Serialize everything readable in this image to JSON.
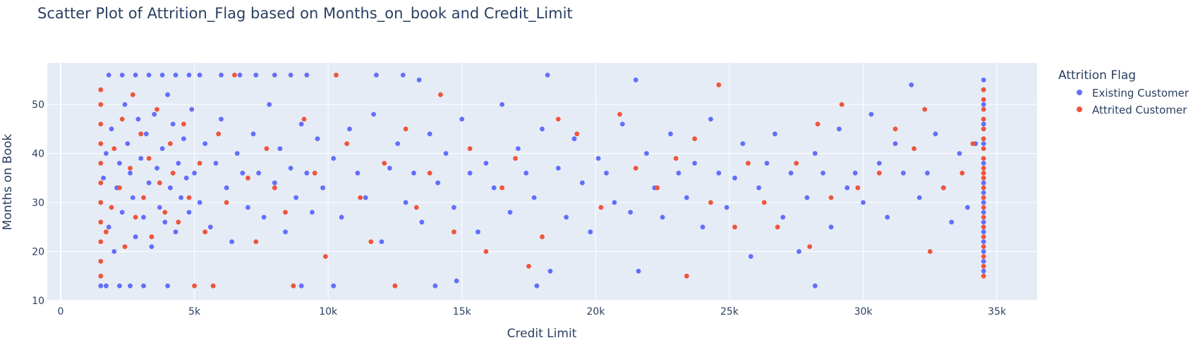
{
  "chart_data": {
    "type": "scatter",
    "title": "Scatter Plot of Attrition_Flag based on Months_on_book and Credit_Limit",
    "xlabel": "Credit Limit",
    "ylabel": "Months on Book",
    "xlim": [
      -500,
      36500
    ],
    "ylim": [
      10,
      58.5
    ],
    "xticks": [
      0,
      5000,
      10000,
      15000,
      20000,
      25000,
      30000,
      35000
    ],
    "xtick_labels": [
      "0",
      "5k",
      "10k",
      "15k",
      "20k",
      "25k",
      "30k",
      "35k"
    ],
    "yticks": [
      10,
      20,
      30,
      40,
      50
    ],
    "ytick_labels": [
      "10",
      "20",
      "30",
      "40",
      "50"
    ],
    "grid": true,
    "background": "#e5ecf6",
    "legend": {
      "title": "Attrition Flag",
      "placement": "right"
    },
    "series": [
      {
        "name": "Existing Customer",
        "color": "#636efa",
        "points": [
          [
            1500,
            13
          ],
          [
            1700,
            13
          ],
          [
            2200,
            13
          ],
          [
            2600,
            13
          ],
          [
            3100,
            13
          ],
          [
            4000,
            13
          ],
          [
            9000,
            13
          ],
          [
            10200,
            13
          ],
          [
            14000,
            13
          ],
          [
            14800,
            14
          ],
          [
            17800,
            13
          ],
          [
            28200,
            13
          ],
          [
            1800,
            56
          ],
          [
            2300,
            56
          ],
          [
            2800,
            56
          ],
          [
            3300,
            56
          ],
          [
            3800,
            56
          ],
          [
            4300,
            56
          ],
          [
            4800,
            56
          ],
          [
            5200,
            56
          ],
          [
            6000,
            56
          ],
          [
            6700,
            56
          ],
          [
            7300,
            56
          ],
          [
            8000,
            56
          ],
          [
            8600,
            56
          ],
          [
            9200,
            56
          ],
          [
            11800,
            56
          ],
          [
            12800,
            56
          ],
          [
            13400,
            55
          ],
          [
            18200,
            56
          ],
          [
            21500,
            55
          ],
          [
            34500,
            55
          ],
          [
            1500,
            30
          ],
          [
            1600,
            35
          ],
          [
            1700,
            40
          ],
          [
            1800,
            25
          ],
          [
            1900,
            45
          ],
          [
            2000,
            20
          ],
          [
            2100,
            33
          ],
          [
            2200,
            38
          ],
          [
            2300,
            28
          ],
          [
            2400,
            50
          ],
          [
            2500,
            42
          ],
          [
            2600,
            36
          ],
          [
            2700,
            31
          ],
          [
            2800,
            23
          ],
          [
            2900,
            47
          ],
          [
            3000,
            39
          ],
          [
            3100,
            27
          ],
          [
            3200,
            44
          ],
          [
            3300,
            34
          ],
          [
            3400,
            21
          ],
          [
            3500,
            48
          ],
          [
            3600,
            37
          ],
          [
            3700,
            29
          ],
          [
            3800,
            41
          ],
          [
            3900,
            26
          ],
          [
            4000,
            52
          ],
          [
            4100,
            33
          ],
          [
            4200,
            46
          ],
          [
            4300,
            24
          ],
          [
            4400,
            38
          ],
          [
            4500,
            31
          ],
          [
            4600,
            43
          ],
          [
            4700,
            35
          ],
          [
            4800,
            28
          ],
          [
            4900,
            49
          ],
          [
            5000,
            36
          ],
          [
            5200,
            30
          ],
          [
            5400,
            42
          ],
          [
            5600,
            25
          ],
          [
            5800,
            38
          ],
          [
            6000,
            47
          ],
          [
            6200,
            33
          ],
          [
            6400,
            22
          ],
          [
            6600,
            40
          ],
          [
            6800,
            36
          ],
          [
            7000,
            29
          ],
          [
            7200,
            44
          ],
          [
            7400,
            36
          ],
          [
            7600,
            27
          ],
          [
            7800,
            50
          ],
          [
            8000,
            34
          ],
          [
            8200,
            41
          ],
          [
            8400,
            24
          ],
          [
            8600,
            37
          ],
          [
            8800,
            31
          ],
          [
            9000,
            46
          ],
          [
            9200,
            36
          ],
          [
            9400,
            28
          ],
          [
            9600,
            43
          ],
          [
            9800,
            33
          ],
          [
            10200,
            39
          ],
          [
            10500,
            27
          ],
          [
            10800,
            45
          ],
          [
            11100,
            36
          ],
          [
            11400,
            31
          ],
          [
            11700,
            48
          ],
          [
            12000,
            22
          ],
          [
            12300,
            37
          ],
          [
            12600,
            42
          ],
          [
            12900,
            30
          ],
          [
            13200,
            36
          ],
          [
            13500,
            26
          ],
          [
            13800,
            44
          ],
          [
            14100,
            34
          ],
          [
            14400,
            40
          ],
          [
            14700,
            29
          ],
          [
            15000,
            47
          ],
          [
            15300,
            36
          ],
          [
            15600,
            24
          ],
          [
            15900,
            38
          ],
          [
            16200,
            33
          ],
          [
            16500,
            50
          ],
          [
            16800,
            28
          ],
          [
            17100,
            41
          ],
          [
            17400,
            36
          ],
          [
            17700,
            31
          ],
          [
            18000,
            45
          ],
          [
            18300,
            16
          ],
          [
            18600,
            37
          ],
          [
            18900,
            27
          ],
          [
            19200,
            43
          ],
          [
            19500,
            34
          ],
          [
            19800,
            24
          ],
          [
            20100,
            39
          ],
          [
            20400,
            36
          ],
          [
            20700,
            30
          ],
          [
            21000,
            46
          ],
          [
            21300,
            28
          ],
          [
            21600,
            16
          ],
          [
            21900,
            40
          ],
          [
            22200,
            33
          ],
          [
            22500,
            27
          ],
          [
            22800,
            44
          ],
          [
            23100,
            36
          ],
          [
            23400,
            31
          ],
          [
            23700,
            38
          ],
          [
            24000,
            25
          ],
          [
            24300,
            47
          ],
          [
            24600,
            36
          ],
          [
            24900,
            29
          ],
          [
            25200,
            35
          ],
          [
            25500,
            42
          ],
          [
            25800,
            19
          ],
          [
            26100,
            33
          ],
          [
            26400,
            38
          ],
          [
            26700,
            44
          ],
          [
            27000,
            27
          ],
          [
            27300,
            36
          ],
          [
            27600,
            20
          ],
          [
            27900,
            31
          ],
          [
            28200,
            40
          ],
          [
            28500,
            36
          ],
          [
            28800,
            25
          ],
          [
            29100,
            45
          ],
          [
            29400,
            33
          ],
          [
            29700,
            36
          ],
          [
            30000,
            30
          ],
          [
            30300,
            48
          ],
          [
            30600,
            38
          ],
          [
            30900,
            27
          ],
          [
            31200,
            42
          ],
          [
            31500,
            36
          ],
          [
            31800,
            54
          ],
          [
            32100,
            31
          ],
          [
            32400,
            36
          ],
          [
            32700,
            44
          ],
          [
            33000,
            33
          ],
          [
            33300,
            26
          ],
          [
            33600,
            40
          ],
          [
            33900,
            29
          ],
          [
            34200,
            42
          ],
          [
            34500,
            16
          ],
          [
            34500,
            18
          ],
          [
            34500,
            20
          ],
          [
            34500,
            22
          ],
          [
            34500,
            24
          ],
          [
            34500,
            26
          ],
          [
            34500,
            28
          ],
          [
            34500,
            30
          ],
          [
            34500,
            32
          ],
          [
            34500,
            34
          ],
          [
            34500,
            38
          ],
          [
            34500,
            42
          ],
          [
            34500,
            46
          ],
          [
            34500,
            50
          ],
          [
            34500,
            53
          ]
        ]
      },
      {
        "name": "Attrited Customer",
        "color": "#ef553b",
        "points": [
          [
            1500,
            15
          ],
          [
            1500,
            18
          ],
          [
            1500,
            22
          ],
          [
            1500,
            26
          ],
          [
            1500,
            30
          ],
          [
            1500,
            34
          ],
          [
            1500,
            38
          ],
          [
            1500,
            42
          ],
          [
            1500,
            46
          ],
          [
            1500,
            50
          ],
          [
            1500,
            53
          ],
          [
            1700,
            24
          ],
          [
            1900,
            29
          ],
          [
            2000,
            41
          ],
          [
            2200,
            33
          ],
          [
            2300,
            47
          ],
          [
            2400,
            21
          ],
          [
            2600,
            37
          ],
          [
            2700,
            52
          ],
          [
            2800,
            27
          ],
          [
            3000,
            44
          ],
          [
            3100,
            31
          ],
          [
            3300,
            39
          ],
          [
            3400,
            23
          ],
          [
            3600,
            49
          ],
          [
            3700,
            34
          ],
          [
            3900,
            28
          ],
          [
            4100,
            42
          ],
          [
            4200,
            36
          ],
          [
            4400,
            26
          ],
          [
            4600,
            46
          ],
          [
            4800,
            31
          ],
          [
            5000,
            13
          ],
          [
            5200,
            38
          ],
          [
            5400,
            24
          ],
          [
            5700,
            13
          ],
          [
            5900,
            44
          ],
          [
            6200,
            30
          ],
          [
            6500,
            56
          ],
          [
            7000,
            35
          ],
          [
            7300,
            22
          ],
          [
            7700,
            41
          ],
          [
            8000,
            33
          ],
          [
            8400,
            28
          ],
          [
            8700,
            13
          ],
          [
            9100,
            47
          ],
          [
            9500,
            36
          ],
          [
            9900,
            19
          ],
          [
            10300,
            56
          ],
          [
            10700,
            42
          ],
          [
            11200,
            31
          ],
          [
            11600,
            22
          ],
          [
            12100,
            38
          ],
          [
            12500,
            13
          ],
          [
            12900,
            45
          ],
          [
            13300,
            29
          ],
          [
            13800,
            36
          ],
          [
            14200,
            52
          ],
          [
            14700,
            24
          ],
          [
            15300,
            41
          ],
          [
            15900,
            20
          ],
          [
            16500,
            33
          ],
          [
            17000,
            39
          ],
          [
            17500,
            17
          ],
          [
            18000,
            23
          ],
          [
            18600,
            47
          ],
          [
            19300,
            44
          ],
          [
            20200,
            29
          ],
          [
            20900,
            48
          ],
          [
            21500,
            37
          ],
          [
            22300,
            33
          ],
          [
            23000,
            39
          ],
          [
            23400,
            15
          ],
          [
            23700,
            43
          ],
          [
            24300,
            30
          ],
          [
            24600,
            54
          ],
          [
            25200,
            25
          ],
          [
            25700,
            38
          ],
          [
            26300,
            30
          ],
          [
            26800,
            25
          ],
          [
            27500,
            38
          ],
          [
            28000,
            21
          ],
          [
            28300,
            46
          ],
          [
            28800,
            31
          ],
          [
            29200,
            50
          ],
          [
            29800,
            33
          ],
          [
            30600,
            36
          ],
          [
            31200,
            45
          ],
          [
            31900,
            41
          ],
          [
            32300,
            49
          ],
          [
            32500,
            20
          ],
          [
            33000,
            33
          ],
          [
            33700,
            36
          ],
          [
            34100,
            42
          ],
          [
            34500,
            15
          ],
          [
            34500,
            17
          ],
          [
            34500,
            19
          ],
          [
            34500,
            21
          ],
          [
            34500,
            23
          ],
          [
            34500,
            25
          ],
          [
            34500,
            27
          ],
          [
            34500,
            29
          ],
          [
            34500,
            31
          ],
          [
            34500,
            33
          ],
          [
            34500,
            35
          ],
          [
            34500,
            36
          ],
          [
            34500,
            37
          ],
          [
            34500,
            39
          ],
          [
            34500,
            41
          ],
          [
            34500,
            43
          ],
          [
            34500,
            45
          ],
          [
            34500,
            47
          ],
          [
            34500,
            49
          ],
          [
            34500,
            51
          ],
          [
            34500,
            53
          ]
        ]
      }
    ]
  }
}
